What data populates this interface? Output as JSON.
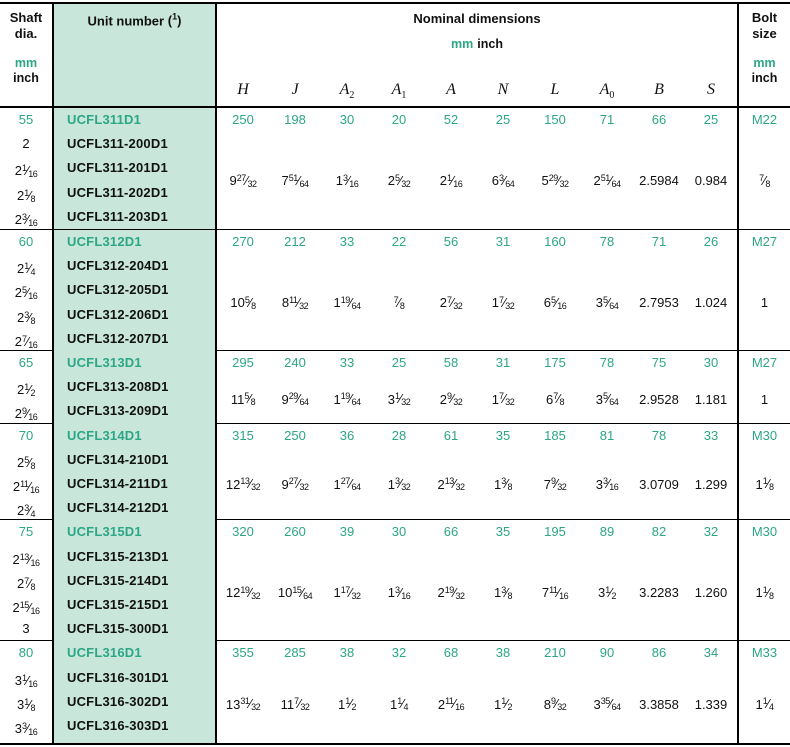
{
  "colors": {
    "teal": "#2CA685",
    "mint": "#C8E7DA"
  },
  "header": {
    "shaft_title": "Shaft dia.",
    "unit_title": "Unit number",
    "fn_open": "(",
    "fn_mark": "1",
    "fn_close": ")",
    "nominal_title": "Nominal dimensions",
    "mm_label": "mm",
    "inch_label": "inch",
    "bolt_title": "Bolt size",
    "columns": [
      {
        "base": "H",
        "sub": ""
      },
      {
        "base": "J",
        "sub": ""
      },
      {
        "base": "A",
        "sub": "2"
      },
      {
        "base": "A",
        "sub": "1"
      },
      {
        "base": "A",
        "sub": ""
      },
      {
        "base": "N",
        "sub": ""
      },
      {
        "base": "L",
        "sub": ""
      },
      {
        "base": "A",
        "sub": "0"
      },
      {
        "base": "B",
        "sub": ""
      },
      {
        "base": "S",
        "sub": ""
      }
    ]
  },
  "blocks": [
    {
      "shaft_mm": "55",
      "shaft_inch": [
        "2",
        "2 1/16",
        "2 1/8",
        "2 3/16"
      ],
      "units": [
        "UCFL311D1",
        "UCFL311-200D1",
        "UCFL311-201D1",
        "UCFL311-202D1",
        "UCFL311-203D1"
      ],
      "mm": [
        "250",
        "198",
        "30",
        "20",
        "52",
        "25",
        "150",
        "71",
        "66",
        "25"
      ],
      "inch": [
        "9 27/32",
        "7 51/64",
        "1 3/16",
        "25/32",
        "2 1/16",
        "63/64",
        "5 29/32",
        "2 51/64",
        "2.5984",
        "0.984"
      ],
      "bolt_mm": "M22",
      "bolt_inch": "7/8"
    },
    {
      "shaft_mm": "60",
      "shaft_inch": [
        "2 1/4",
        "2 5/16",
        "2 3/8",
        "2 7/16"
      ],
      "units": [
        "UCFL312D1",
        "UCFL312-204D1",
        "UCFL312-205D1",
        "UCFL312-206D1",
        "UCFL312-207D1"
      ],
      "mm": [
        "270",
        "212",
        "33",
        "22",
        "56",
        "31",
        "160",
        "78",
        "71",
        "26"
      ],
      "inch": [
        "10 5/8",
        "8 11/32",
        "1 19/64",
        "7/8",
        "2 7/32",
        "1 7/32",
        "6 5/16",
        "3 5/64",
        "2.7953",
        "1.024"
      ],
      "bolt_mm": "M27",
      "bolt_inch": "1"
    },
    {
      "shaft_mm": "65",
      "shaft_inch": [
        "2 1/2",
        "2 9/16"
      ],
      "units": [
        "UCFL313D1",
        "UCFL313-208D1",
        "UCFL313-209D1"
      ],
      "mm": [
        "295",
        "240",
        "33",
        "25",
        "58",
        "31",
        "175",
        "78",
        "75",
        "30"
      ],
      "inch": [
        "11 5/8",
        "9 29/64",
        "1 19/64",
        "31/32",
        "2 9/32",
        "1 7/32",
        "6 7/8",
        "3 5/64",
        "2.9528",
        "1.181"
      ],
      "bolt_mm": "M27",
      "bolt_inch": "1"
    },
    {
      "shaft_mm": "70",
      "shaft_inch": [
        "2 5/8",
        "2 11/16",
        "2 3/4"
      ],
      "units": [
        "UCFL314D1",
        "UCFL314-210D1",
        "UCFL314-211D1",
        "UCFL314-212D1"
      ],
      "mm": [
        "315",
        "250",
        "36",
        "28",
        "61",
        "35",
        "185",
        "81",
        "78",
        "33"
      ],
      "inch": [
        "12 13/32",
        "9 27/32",
        "1 27/64",
        "1 3/32",
        "2 13/32",
        "1 3/8",
        "7 9/32",
        "3 3/16",
        "3.0709",
        "1.299"
      ],
      "bolt_mm": "M30",
      "bolt_inch": "1 1/8"
    },
    {
      "shaft_mm": "75",
      "shaft_inch": [
        "2 13/16",
        "2 7/8",
        "2 15/16",
        "3"
      ],
      "units": [
        "UCFL315D1",
        "UCFL315-213D1",
        "UCFL315-214D1",
        "UCFL315-215D1",
        "UCFL315-300D1"
      ],
      "mm": [
        "320",
        "260",
        "39",
        "30",
        "66",
        "35",
        "195",
        "89",
        "82",
        "32"
      ],
      "inch": [
        "12 19/32",
        "10 15/64",
        "1 17/32",
        "1 3/16",
        "2 19/32",
        "1 3/8",
        "7 11/16",
        "3 1/2",
        "3.2283",
        "1.260"
      ],
      "bolt_mm": "M30",
      "bolt_inch": "1 1/8"
    },
    {
      "shaft_mm": "80",
      "shaft_inch": [
        "3 1/16",
        "3 1/8",
        "3 3/16"
      ],
      "units": [
        "UCFL316D1",
        "UCFL316-301D1",
        "UCFL316-302D1",
        "UCFL316-303D1"
      ],
      "mm": [
        "355",
        "285",
        "38",
        "32",
        "68",
        "38",
        "210",
        "90",
        "86",
        "34"
      ],
      "inch": [
        "13 31/32",
        "11 7/32",
        "1 1/2",
        "1 1/4",
        "2 11/16",
        "1 1/2",
        "8 9/32",
        "3 35/64",
        "3.3858",
        "1.339"
      ],
      "bolt_mm": "M33",
      "bolt_inch": "1 1/4"
    }
  ]
}
